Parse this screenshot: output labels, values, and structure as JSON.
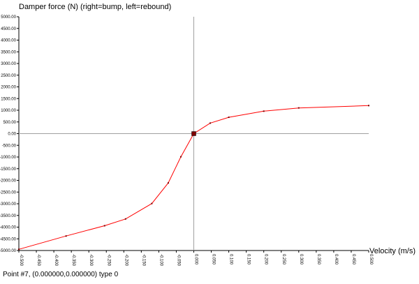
{
  "chart_data": {
    "type": "line",
    "title": "Damper force (N) (right=bump, left=rebound)",
    "xlabel": "Velocity (m/s)",
    "ylabel": "",
    "xlim": [
      -0.5,
      0.5
    ],
    "ylim": [
      -5000,
      5000
    ],
    "xticks": [
      "-0.500",
      "-0.450",
      "-0.400",
      "-0.350",
      "-0.300",
      "-0.250",
      "-0.200",
      "-0.150",
      "-0.100",
      "-0.050",
      "0.000",
      "0.050",
      "0.100",
      "0.150",
      "0.200",
      "0.250",
      "0.300",
      "0.350",
      "0.400",
      "0.450",
      "0.500"
    ],
    "yticks": [
      "5000.00",
      "4500.00",
      "4000.00",
      "3500.00",
      "3000.00",
      "2500.00",
      "2000.00",
      "1500.00",
      "1000.00",
      "500.00",
      "0.00",
      "-500.00",
      "-1000.00",
      "-1500.00",
      "-2000.00",
      "-2500.00",
      "-3000.00",
      "-3500.00",
      "-4000.00",
      "-4500.00",
      "-5000.00"
    ],
    "series": [
      {
        "color": "#ff0000",
        "points": [
          {
            "x": -0.5,
            "y": -4950
          },
          {
            "x": -0.365,
            "y": -4380
          },
          {
            "x": -0.255,
            "y": -3940
          },
          {
            "x": -0.195,
            "y": -3650
          },
          {
            "x": -0.12,
            "y": -2990
          },
          {
            "x": -0.073,
            "y": -2110
          },
          {
            "x": -0.037,
            "y": -990
          },
          {
            "x": 0.0,
            "y": 0
          },
          {
            "x": 0.047,
            "y": 450
          },
          {
            "x": 0.1,
            "y": 700
          },
          {
            "x": 0.2,
            "y": 960
          },
          {
            "x": 0.3,
            "y": 1100
          },
          {
            "x": 0.5,
            "y": 1200
          }
        ]
      }
    ],
    "selected_point": {
      "x": 0.0,
      "y": 0.0
    },
    "grid": false
  },
  "status": {
    "text": "Point #7, (0.000000,0.000000) type 0"
  }
}
